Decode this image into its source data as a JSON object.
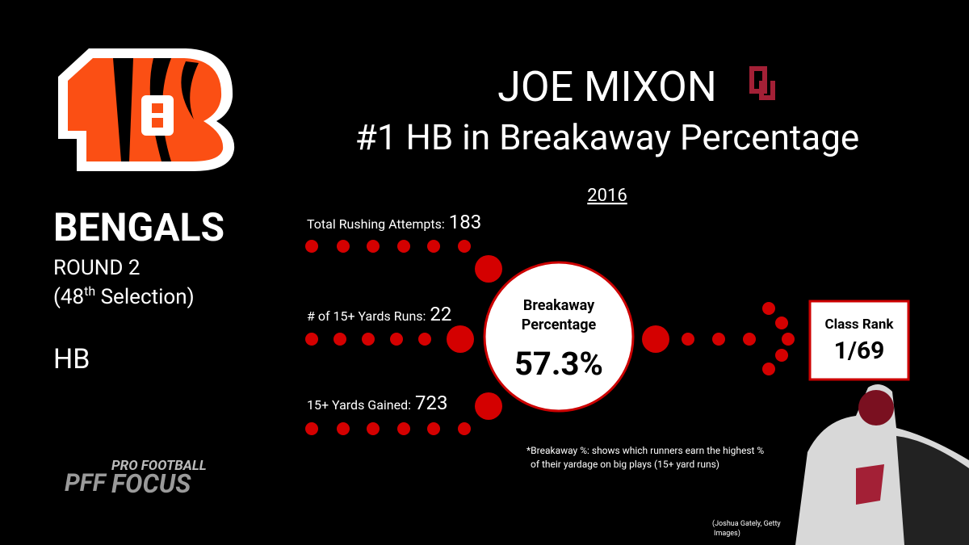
{
  "team": {
    "name": "BENGALS",
    "round": "ROUND 2",
    "selection": {
      "prefix": "(48",
      "suffix": "th",
      "rest": " Selection)"
    },
    "position": "HB"
  },
  "header": {
    "player": "JOE MIXON",
    "subtitle": "#1 HB in Breakaway Percentage",
    "season": "2016"
  },
  "stats": [
    {
      "label": "Total Rushing Attempts:",
      "value": "183"
    },
    {
      "label": "# of 15+ Yards Runs:",
      "value": "22"
    },
    {
      "label": "15+ Yards Gained:",
      "value": "723"
    }
  ],
  "breakaway": {
    "label_lines": [
      "Breakaway",
      "Percentage"
    ],
    "value": "57.3%"
  },
  "class_rank": {
    "label": "Class Rank",
    "value": "1/69"
  },
  "footnote": [
    "*Breakaway %: shows which runners earn the highest %",
    "of their yardage on big plays (15+ yard runs)"
  ],
  "photo_credit": [
    "(Joshua Gately, Getty",
    "Images)"
  ],
  "brand": {
    "mark": "PFF",
    "line1": "PRO FOOTBALL",
    "line2": "FOCUS"
  }
}
